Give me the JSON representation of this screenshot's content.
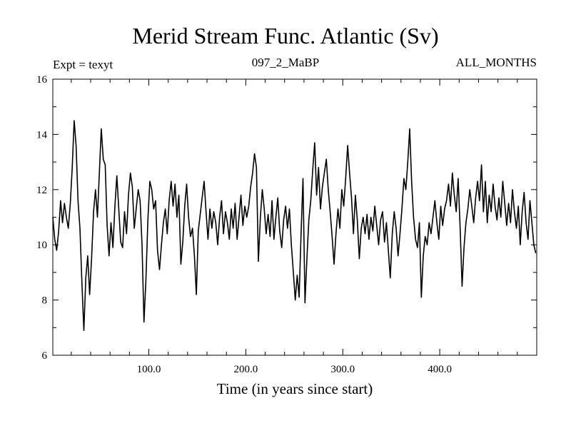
{
  "chart_data": {
    "type": "line",
    "title": "Merid Stream Func. Atlantic (Sv)",
    "subtitle_left": "Expt = texyt",
    "subtitle_center": "097_2_MaBP",
    "subtitle_right": "ALL_MONTHS",
    "xlabel": "Time (in years since start)",
    "ylabel": "",
    "xlim": [
      1,
      500
    ],
    "ylim": [
      6,
      16
    ],
    "xticks": [
      100,
      200,
      300,
      400
    ],
    "xtick_labels": [
      "100.0",
      "200.0",
      "300.0",
      "400.0"
    ],
    "yticks": [
      6,
      8,
      10,
      12,
      14,
      16
    ],
    "ytick_labels": [
      "6",
      "8",
      "10",
      "12",
      "14",
      "16"
    ],
    "grid": false,
    "series": [
      {
        "points": [
          [
            1,
            11.0
          ],
          [
            3,
            10.2
          ],
          [
            5,
            9.8
          ],
          [
            7,
            10.5
          ],
          [
            9,
            11.6
          ],
          [
            11,
            10.8
          ],
          [
            13,
            11.5
          ],
          [
            15,
            11.0
          ],
          [
            17,
            10.6
          ],
          [
            19,
            11.5
          ],
          [
            21,
            12.8
          ],
          [
            23,
            14.5
          ],
          [
            25,
            13.6
          ],
          [
            27,
            11.6
          ],
          [
            29,
            10.6
          ],
          [
            31,
            8.6
          ],
          [
            33,
            6.9
          ],
          [
            35,
            8.8
          ],
          [
            37,
            9.6
          ],
          [
            39,
            8.2
          ],
          [
            41,
            9.5
          ],
          [
            43,
            11.2
          ],
          [
            45,
            12.0
          ],
          [
            47,
            11.0
          ],
          [
            49,
            12.6
          ],
          [
            51,
            14.2
          ],
          [
            53,
            13.1
          ],
          [
            55,
            12.9
          ],
          [
            57,
            10.7
          ],
          [
            59,
            9.6
          ],
          [
            61,
            10.8
          ],
          [
            63,
            9.9
          ],
          [
            65,
            11.4
          ],
          [
            67,
            12.5
          ],
          [
            69,
            11.3
          ],
          [
            71,
            10.1
          ],
          [
            73,
            9.9
          ],
          [
            75,
            11.2
          ],
          [
            77,
            10.4
          ],
          [
            79,
            11.8
          ],
          [
            81,
            12.6
          ],
          [
            83,
            12.1
          ],
          [
            85,
            10.6
          ],
          [
            87,
            11.3
          ],
          [
            89,
            12.0
          ],
          [
            91,
            11.6
          ],
          [
            93,
            10.0
          ],
          [
            95,
            7.2
          ],
          [
            97,
            8.7
          ],
          [
            99,
            10.9
          ],
          [
            101,
            12.3
          ],
          [
            103,
            12.0
          ],
          [
            105,
            11.3
          ],
          [
            107,
            11.6
          ],
          [
            109,
            9.8
          ],
          [
            111,
            9.1
          ],
          [
            113,
            10.0
          ],
          [
            115,
            10.8
          ],
          [
            117,
            11.3
          ],
          [
            119,
            10.4
          ],
          [
            121,
            11.6
          ],
          [
            123,
            12.3
          ],
          [
            125,
            11.4
          ],
          [
            127,
            12.2
          ],
          [
            129,
            11.0
          ],
          [
            131,
            11.8
          ],
          [
            133,
            9.3
          ],
          [
            135,
            10.1
          ],
          [
            137,
            11.4
          ],
          [
            139,
            12.2
          ],
          [
            141,
            11.0
          ],
          [
            143,
            10.3
          ],
          [
            145,
            10.6
          ],
          [
            147,
            9.6
          ],
          [
            149,
            8.2
          ],
          [
            151,
            10.5
          ],
          [
            153,
            11.1
          ],
          [
            155,
            11.7
          ],
          [
            157,
            12.3
          ],
          [
            159,
            11.2
          ],
          [
            161,
            10.2
          ],
          [
            163,
            11.3
          ],
          [
            165,
            10.6
          ],
          [
            167,
            11.2
          ],
          [
            169,
            10.8
          ],
          [
            171,
            10.0
          ],
          [
            173,
            11.0
          ],
          [
            175,
            11.6
          ],
          [
            177,
            10.4
          ],
          [
            179,
            11.2
          ],
          [
            181,
            10.8
          ],
          [
            183,
            10.2
          ],
          [
            185,
            11.3
          ],
          [
            187,
            10.6
          ],
          [
            189,
            11.5
          ],
          [
            191,
            10.2
          ],
          [
            193,
            11.0
          ],
          [
            195,
            11.8
          ],
          [
            197,
            10.7
          ],
          [
            199,
            11.4
          ],
          [
            201,
            11.0
          ],
          [
            203,
            11.4
          ],
          [
            205,
            12.1
          ],
          [
            207,
            12.6
          ],
          [
            209,
            13.3
          ],
          [
            211,
            12.8
          ],
          [
            213,
            9.4
          ],
          [
            215,
            11.0
          ],
          [
            217,
            12.0
          ],
          [
            219,
            11.3
          ],
          [
            221,
            10.4
          ],
          [
            223,
            11.1
          ],
          [
            225,
            10.3
          ],
          [
            227,
            11.6
          ],
          [
            229,
            10.2
          ],
          [
            231,
            11.0
          ],
          [
            233,
            11.7
          ],
          [
            235,
            10.5
          ],
          [
            237,
            9.9
          ],
          [
            239,
            10.9
          ],
          [
            241,
            11.4
          ],
          [
            243,
            10.6
          ],
          [
            245,
            11.3
          ],
          [
            247,
            10.0
          ],
          [
            249,
            9.0
          ],
          [
            251,
            8.0
          ],
          [
            253,
            8.9
          ],
          [
            255,
            8.1
          ],
          [
            257,
            10.4
          ],
          [
            259,
            12.4
          ],
          [
            261,
            7.9
          ],
          [
            263,
            9.5
          ],
          [
            265,
            10.9
          ],
          [
            267,
            11.6
          ],
          [
            269,
            12.7
          ],
          [
            271,
            13.7
          ],
          [
            273,
            11.8
          ],
          [
            275,
            12.8
          ],
          [
            277,
            11.3
          ],
          [
            279,
            12.1
          ],
          [
            281,
            12.6
          ],
          [
            283,
            13.1
          ],
          [
            285,
            12.0
          ],
          [
            287,
            11.2
          ],
          [
            289,
            10.3
          ],
          [
            291,
            9.3
          ],
          [
            293,
            10.4
          ],
          [
            295,
            11.3
          ],
          [
            297,
            10.6
          ],
          [
            299,
            12.0
          ],
          [
            301,
            11.4
          ],
          [
            303,
            12.4
          ],
          [
            305,
            13.6
          ],
          [
            307,
            12.6
          ],
          [
            309,
            11.7
          ],
          [
            311,
            10.4
          ],
          [
            313,
            11.8
          ],
          [
            315,
            10.9
          ],
          [
            317,
            9.5
          ],
          [
            319,
            10.6
          ],
          [
            321,
            11.0
          ],
          [
            323,
            10.4
          ],
          [
            325,
            11.1
          ],
          [
            327,
            10.2
          ],
          [
            329,
            11.0
          ],
          [
            331,
            10.5
          ],
          [
            333,
            11.4
          ],
          [
            335,
            10.7
          ],
          [
            337,
            10.0
          ],
          [
            339,
            10.9
          ],
          [
            341,
            11.2
          ],
          [
            343,
            10.1
          ],
          [
            345,
            10.8
          ],
          [
            347,
            9.8
          ],
          [
            349,
            8.8
          ],
          [
            351,
            10.4
          ],
          [
            353,
            11.2
          ],
          [
            355,
            10.6
          ],
          [
            357,
            9.6
          ],
          [
            359,
            10.4
          ],
          [
            361,
            11.3
          ],
          [
            363,
            12.4
          ],
          [
            365,
            12.0
          ],
          [
            367,
            13.0
          ],
          [
            369,
            14.2
          ],
          [
            371,
            12.3
          ],
          [
            373,
            11.0
          ],
          [
            375,
            10.2
          ],
          [
            377,
            9.9
          ],
          [
            379,
            10.8
          ],
          [
            381,
            8.1
          ],
          [
            383,
            9.6
          ],
          [
            385,
            10.3
          ],
          [
            387,
            10.0
          ],
          [
            389,
            10.8
          ],
          [
            391,
            10.4
          ],
          [
            393,
            11.0
          ],
          [
            395,
            11.6
          ],
          [
            397,
            10.8
          ],
          [
            399,
            10.2
          ],
          [
            401,
            11.4
          ],
          [
            403,
            10.7
          ],
          [
            405,
            11.3
          ],
          [
            407,
            11.6
          ],
          [
            409,
            12.2
          ],
          [
            411,
            11.4
          ],
          [
            413,
            12.6
          ],
          [
            415,
            11.8
          ],
          [
            417,
            11.2
          ],
          [
            419,
            12.4
          ],
          [
            421,
            10.6
          ],
          [
            423,
            8.5
          ],
          [
            425,
            9.9
          ],
          [
            427,
            10.8
          ],
          [
            429,
            11.3
          ],
          [
            431,
            12.0
          ],
          [
            433,
            11.4
          ],
          [
            435,
            10.8
          ],
          [
            437,
            11.7
          ],
          [
            439,
            12.3
          ],
          [
            441,
            11.6
          ],
          [
            443,
            12.9
          ],
          [
            445,
            11.2
          ],
          [
            447,
            12.3
          ],
          [
            449,
            10.8
          ],
          [
            451,
            11.8
          ],
          [
            453,
            11.2
          ],
          [
            455,
            12.2
          ],
          [
            457,
            11.4
          ],
          [
            459,
            10.9
          ],
          [
            461,
            11.7
          ],
          [
            463,
            11.0
          ],
          [
            465,
            12.3
          ],
          [
            467,
            11.5
          ],
          [
            469,
            10.7
          ],
          [
            471,
            11.5
          ],
          [
            473,
            10.8
          ],
          [
            475,
            12.0
          ],
          [
            477,
            11.2
          ],
          [
            479,
            10.6
          ],
          [
            481,
            11.4
          ],
          [
            483,
            10.0
          ],
          [
            485,
            11.2
          ],
          [
            487,
            11.9
          ],
          [
            489,
            10.8
          ],
          [
            491,
            10.2
          ],
          [
            493,
            11.6
          ],
          [
            495,
            10.8
          ],
          [
            497,
            10.0
          ],
          [
            499,
            9.7
          ]
        ]
      }
    ]
  }
}
